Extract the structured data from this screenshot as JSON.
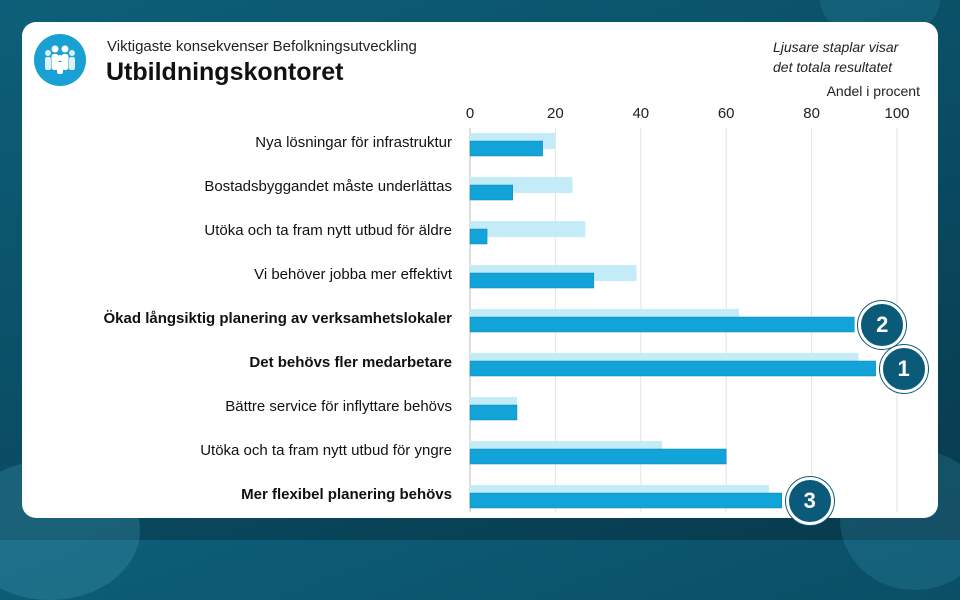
{
  "header": {
    "supertitle": "Viktigaste konsekvenser Befolkningsutveckling",
    "title": "Utbildningskontoret",
    "note_line1": "Ljusare staplar visar",
    "note_line2": "det totala resultatet"
  },
  "colors": {
    "dark_bar": "#12a3d8",
    "light_bar": "#c4ecf8",
    "rank_badge": "#0b5a7a",
    "logo": "#19a1d6"
  },
  "logo_icon": "people-group-icon",
  "chart_data": {
    "type": "bar",
    "orientation": "horizontal",
    "xlabel": "Andel i procent",
    "xlim": [
      0,
      100
    ],
    "xticks": [
      0,
      20,
      40,
      60,
      80,
      100
    ],
    "grid": true,
    "categories": [
      {
        "label": "Nya lösningar för infrastruktur",
        "bold": false
      },
      {
        "label": "Bostadsbyggandet måste underlättas",
        "bold": false
      },
      {
        "label": "Utöka och ta fram nytt utbud för äldre",
        "bold": false
      },
      {
        "label": "Vi behöver jobba mer effektivt",
        "bold": false
      },
      {
        "label": "Ökad långsiktig planering av verksamhetslokaler",
        "bold": true
      },
      {
        "label": "Det behövs fler medarbetare",
        "bold": true
      },
      {
        "label": "Bättre service för inflyttare behövs",
        "bold": false
      },
      {
        "label": "Utöka och ta fram nytt utbud för yngre",
        "bold": false
      },
      {
        "label": "Mer flexibel planering behövs",
        "bold": true
      }
    ],
    "series": [
      {
        "name": "Totalt resultat",
        "shade": "light",
        "values": [
          20,
          24,
          27,
          39,
          63,
          91,
          11,
          45,
          70
        ]
      },
      {
        "name": "Utbildningskontoret",
        "shade": "dark",
        "values": [
          17,
          10,
          4,
          29,
          90,
          95,
          11,
          60,
          73
        ]
      }
    ],
    "rank_badges": [
      {
        "rank": "2",
        "category_index": 4
      },
      {
        "rank": "1",
        "category_index": 5
      },
      {
        "rank": "3",
        "category_index": 8
      }
    ]
  }
}
